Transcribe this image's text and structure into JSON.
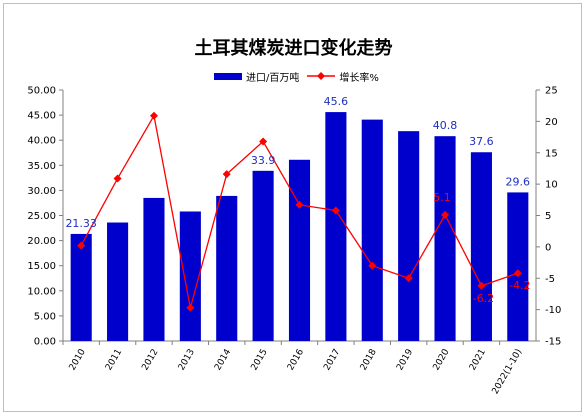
{
  "chart_data": {
    "type": "bar",
    "title": "土耳其煤炭进口变化走势",
    "categories": [
      "2010",
      "2011",
      "2012",
      "2013",
      "2014",
      "2015",
      "2016",
      "2017",
      "2018",
      "2019",
      "2020",
      "2021",
      "2022(1-10)"
    ],
    "series": [
      {
        "name": "进口/百万吨",
        "type": "bar",
        "axis": "left",
        "color": "#0000cc",
        "values": [
          21.33,
          23.6,
          28.5,
          25.8,
          28.9,
          33.9,
          36.1,
          45.6,
          44.1,
          41.8,
          40.8,
          37.6,
          29.6
        ]
      },
      {
        "name": "增长率%",
        "type": "line",
        "axis": "right",
        "color": "#ff0000",
        "marker": "diamond",
        "values": [
          0.2,
          10.9,
          20.9,
          -9.7,
          11.6,
          16.8,
          6.7,
          5.8,
          -3.0,
          -5.0,
          5.1,
          -6.2,
          -4.2
        ]
      }
    ],
    "bar_data_labels": [
      {
        "index": 0,
        "text": "21.33"
      },
      {
        "index": 5,
        "text": "33.9"
      },
      {
        "index": 7,
        "text": "45.6"
      },
      {
        "index": 10,
        "text": "40.8"
      },
      {
        "index": 11,
        "text": "37.6"
      },
      {
        "index": 12,
        "text": "29.6"
      }
    ],
    "line_data_labels": [
      {
        "index": 10,
        "text": "5.1"
      },
      {
        "index": 11,
        "text": "-6.2"
      },
      {
        "index": 12,
        "text": "-4.2"
      }
    ],
    "y_left": {
      "lim": [
        0,
        50
      ],
      "ticks": [
        "0.00",
        "5.00",
        "10.00",
        "15.00",
        "20.00",
        "25.00",
        "30.00",
        "35.00",
        "40.00",
        "45.00",
        "50.00"
      ]
    },
    "y_right": {
      "lim": [
        -15,
        25
      ],
      "ticks": [
        "-15",
        "-10",
        "-5",
        "0",
        "5",
        "10",
        "15",
        "20",
        "25"
      ]
    },
    "grid": false,
    "legend_position": "top-center"
  }
}
